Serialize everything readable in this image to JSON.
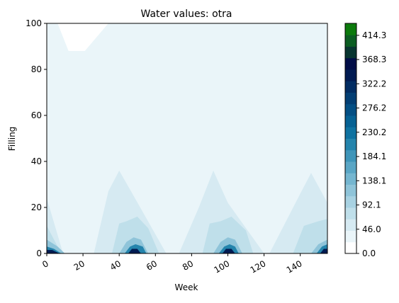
{
  "chart_data": {
    "type": "heatmap",
    "title": "Water values: otra",
    "xlabel": "Week",
    "ylabel": "Filling",
    "xlim": [
      0,
      155
    ],
    "ylim": [
      0,
      100
    ],
    "x_ticks": [
      0,
      20,
      40,
      60,
      80,
      100,
      120,
      140
    ],
    "x_tick_labels": [
      "0",
      "20",
      "40",
      "60",
      "80",
      "100",
      "120",
      "140"
    ],
    "y_ticks": [
      0,
      20,
      40,
      60,
      80,
      100
    ],
    "y_tick_labels": [
      "0",
      "20",
      "40",
      "60",
      "80",
      "100"
    ],
    "colorbar": {
      "colormap": "ocean_r",
      "range": [
        0,
        437
      ],
      "ticks": [
        0.0,
        46.0,
        92.1,
        138.1,
        184.1,
        230.2,
        276.2,
        322.2,
        368.3,
        414.3
      ],
      "tick_labels": [
        "0.0",
        "46.0",
        "92.1",
        "138.1",
        "184.1",
        "230.2",
        "276.2",
        "322.2",
        "368.3",
        "414.3"
      ],
      "levels": 19,
      "colors": [
        "#ffffff",
        "#eaf5f9",
        "#d6eaf2",
        "#bfdfea",
        "#a8d2e2",
        "#8fc4d9",
        "#75b6d0",
        "#5aa6c5",
        "#3f95b9",
        "#2484ac",
        "#0f72a0",
        "#066193",
        "#044f84",
        "#033e73",
        "#022c62",
        "#011b52",
        "#010d47",
        "#083530",
        "#0b5d22",
        "#0c7a0c"
      ]
    },
    "regions": [
      {
        "level": 1,
        "label": "light upper band",
        "polygon": [
          [
            0,
            100
          ],
          [
            155,
            100
          ],
          [
            155,
            0
          ],
          [
            0,
            0
          ]
        ]
      },
      {
        "level": 0,
        "label": "top notch",
        "polygon": [
          [
            6,
            100
          ],
          [
            12,
            88
          ],
          [
            21,
            88
          ],
          [
            34,
            100
          ]
        ]
      },
      {
        "level": 2,
        "label": "left bump",
        "polygon": [
          [
            0,
            24
          ],
          [
            9,
            0
          ],
          [
            0,
            0
          ]
        ]
      },
      {
        "level": 2,
        "label": "peak week 40",
        "polygon": [
          [
            26,
            0
          ],
          [
            34,
            27
          ],
          [
            40,
            36
          ],
          [
            48,
            25
          ],
          [
            66,
            0
          ]
        ]
      },
      {
        "level": 2,
        "label": "peak week 92",
        "polygon": [
          [
            73,
            0
          ],
          [
            84,
            20
          ],
          [
            92,
            36
          ],
          [
            100,
            22
          ],
          [
            120,
            0
          ]
        ]
      },
      {
        "level": 2,
        "label": "peak week 145",
        "polygon": [
          [
            123,
            0
          ],
          [
            140,
            26
          ],
          [
            146,
            35
          ],
          [
            155,
            22
          ],
          [
            155,
            0
          ]
        ]
      },
      {
        "level": 3,
        "label": "left core",
        "polygon": [
          [
            0,
            12
          ],
          [
            8,
            0
          ],
          [
            0,
            0
          ]
        ]
      },
      {
        "level": 3,
        "label": "core week 45",
        "polygon": [
          [
            36,
            0
          ],
          [
            40,
            13
          ],
          [
            44,
            14
          ],
          [
            50,
            16
          ],
          [
            56,
            11
          ],
          [
            62,
            0
          ]
        ]
      },
      {
        "level": 3,
        "label": "core week 100",
        "polygon": [
          [
            86,
            0
          ],
          [
            90,
            13
          ],
          [
            96,
            14
          ],
          [
            102,
            16
          ],
          [
            110,
            10
          ],
          [
            114,
            0
          ]
        ]
      },
      {
        "level": 3,
        "label": "core week 150",
        "polygon": [
          [
            136,
            0
          ],
          [
            142,
            12
          ],
          [
            150,
            14
          ],
          [
            155,
            15
          ],
          [
            155,
            0
          ]
        ]
      },
      {
        "level": 5,
        "label": "left base",
        "polygon": [
          [
            0,
            6
          ],
          [
            6,
            3
          ],
          [
            10,
            0
          ],
          [
            0,
            0
          ]
        ]
      },
      {
        "level": 5,
        "label": "base week 48",
        "polygon": [
          [
            40,
            0
          ],
          [
            44,
            5
          ],
          [
            48,
            7
          ],
          [
            52,
            6
          ],
          [
            56,
            0
          ]
        ]
      },
      {
        "level": 5,
        "label": "base week 100",
        "polygon": [
          [
            92,
            0
          ],
          [
            96,
            5
          ],
          [
            100,
            7
          ],
          [
            104,
            6
          ],
          [
            108,
            0
          ]
        ]
      },
      {
        "level": 5,
        "label": "base week 152",
        "polygon": [
          [
            146,
            0
          ],
          [
            150,
            4
          ],
          [
            155,
            6
          ],
          [
            155,
            0
          ]
        ]
      },
      {
        "level": 9,
        "label": "left dark",
        "polygon": [
          [
            0,
            3
          ],
          [
            4,
            2
          ],
          [
            8,
            0
          ],
          [
            0,
            0
          ]
        ]
      },
      {
        "level": 9,
        "label": "dark week 48",
        "polygon": [
          [
            43,
            0
          ],
          [
            46,
            3
          ],
          [
            49,
            4
          ],
          [
            53,
            3
          ],
          [
            55,
            0
          ]
        ]
      },
      {
        "level": 9,
        "label": "dark week 100",
        "polygon": [
          [
            95,
            0
          ],
          [
            98,
            3
          ],
          [
            101,
            4
          ],
          [
            104,
            3
          ],
          [
            106,
            0
          ]
        ]
      },
      {
        "level": 9,
        "label": "dark week 153",
        "polygon": [
          [
            149,
            0
          ],
          [
            152,
            3
          ],
          [
            155,
            4
          ],
          [
            155,
            0
          ]
        ]
      },
      {
        "level": 15,
        "label": "left deep",
        "polygon": [
          [
            0,
            1.5
          ],
          [
            3,
            1.5
          ],
          [
            7,
            0
          ],
          [
            0,
            0
          ]
        ]
      },
      {
        "level": 15,
        "label": "deep week 48",
        "polygon": [
          [
            45,
            0
          ],
          [
            47,
            2
          ],
          [
            50,
            2
          ],
          [
            52,
            0
          ]
        ]
      },
      {
        "level": 15,
        "label": "deep week 100",
        "polygon": [
          [
            97,
            0
          ],
          [
            99,
            2
          ],
          [
            102,
            2
          ],
          [
            104,
            0
          ]
        ]
      },
      {
        "level": 15,
        "label": "deep week 154",
        "polygon": [
          [
            151,
            0
          ],
          [
            153,
            2
          ],
          [
            155,
            2
          ],
          [
            155,
            0
          ]
        ]
      }
    ]
  }
}
